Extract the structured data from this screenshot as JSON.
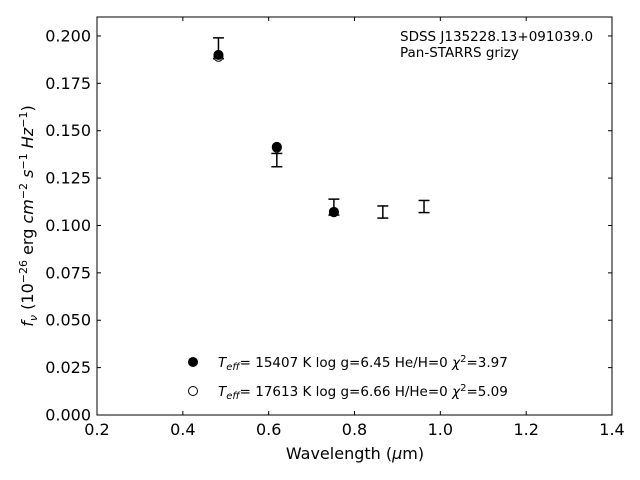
{
  "chart_data": {
    "type": "scatter",
    "xlabel": "Wavelength (μm)",
    "ylabel": "f_ν (10^-26 erg cm^-2 s^-1 Hz^-1)",
    "xlim": [
      0.2,
      1.4
    ],
    "ylim": [
      0.0,
      0.21
    ],
    "x_ticks": [
      "0.2",
      "0.4",
      "0.6",
      "0.8",
      "1.0",
      "1.2",
      "1.4"
    ],
    "y_ticks": [
      "0.000",
      "0.025",
      "0.050",
      "0.075",
      "0.100",
      "0.125",
      "0.150",
      "0.175",
      "0.200"
    ],
    "grid": false,
    "annotations": [
      "SDSS J135228.13+091039.0",
      "Pan-STARRS grizy"
    ],
    "observed": {
      "x": [
        0.483,
        0.619,
        0.752,
        0.866,
        0.962
      ],
      "y": [
        0.1935,
        0.1345,
        0.1097,
        0.1071,
        0.11
      ],
      "yerr": [
        0.0055,
        0.0035,
        0.0042,
        0.0032,
        0.0032
      ]
    },
    "series": [
      {
        "legend_text": "T_eff= 15407 K  log g=6.45  He/H=0  χ²=3.97",
        "marker": "filled-circle",
        "x": [
          0.483,
          0.619,
          0.752
        ],
        "y": [
          0.19,
          0.1415,
          0.1072
        ]
      },
      {
        "legend_text": "T_eff= 17613 K  log g=6.66  H/He=0  χ²=5.09",
        "marker": "open-circle",
        "x": [
          0.483,
          0.619,
          0.752
        ],
        "y": [
          0.189,
          0.141,
          0.107
        ]
      }
    ],
    "legend_placement": "lower-center"
  }
}
